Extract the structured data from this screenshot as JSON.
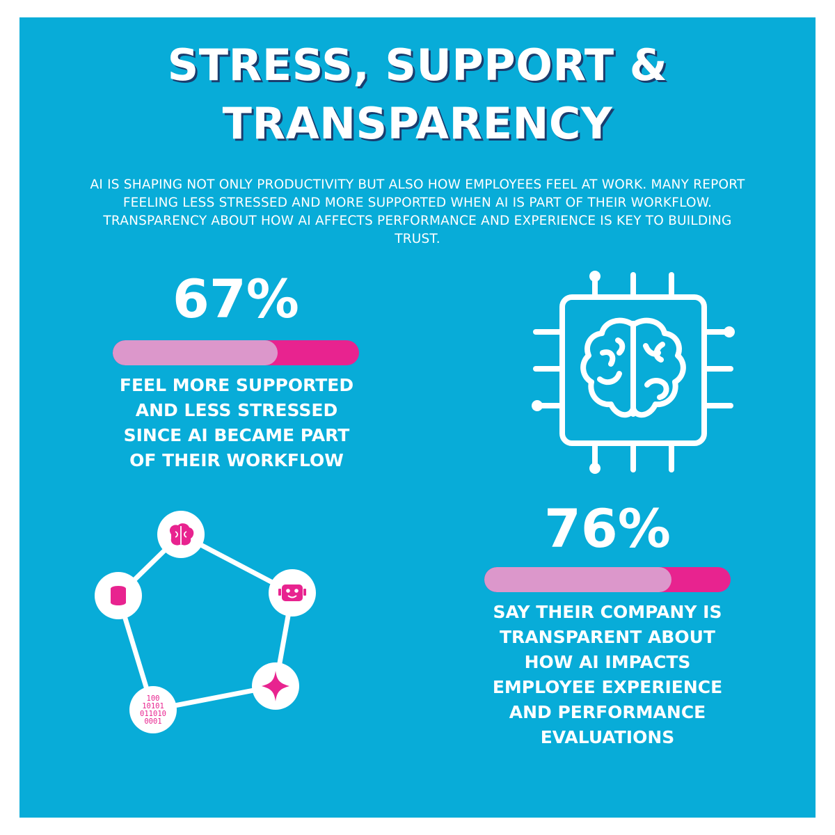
{
  "title": {
    "line1": "STRESS, SUPPORT &",
    "line2": "TRANSPARENCY"
  },
  "intro": "AI IS SHAPING NOT ONLY PRODUCTIVITY BUT ALSO HOW EMPLOYEES FEEL AT WORK. MANY REPORT FEELING LESS STRESSED AND MORE SUPPORTED WHEN AI IS PART OF THEIR WORKFLOW. TRANSPARENCY ABOUT HOW AI AFFECTS PERFORMANCE AND EXPERIENCE IS KEY TO BUILDING TRUST.",
  "stats": [
    {
      "value_text": "67%",
      "fill_fraction": 0.67,
      "label_lines": [
        "FEEL MORE SUPPORTED",
        "AND LESS STRESSED",
        "SINCE AI BECAME PART",
        "OF THEIR WORKFLOW"
      ]
    },
    {
      "value_text": "76%",
      "fill_fraction": 0.76,
      "label_lines": [
        "SAY THEIR COMPANY IS",
        "TRANSPARENT ABOUT",
        "HOW AI IMPACTS",
        "EMPLOYEE EXPERIENCE",
        "AND PERFORMANCE",
        "EVALUATIONS"
      ]
    }
  ],
  "network": {
    "binary_lines": [
      "100",
      "10101",
      "011010",
      "0001"
    ]
  },
  "colors": {
    "background": "#08acd8",
    "accent_pink": "#e8238f",
    "light_pink": "#dc97cb",
    "white": "#ffffff"
  },
  "icons": [
    "brain-chip-icon",
    "brain-node-icon",
    "robot-node-icon",
    "sparkle-node-icon",
    "binary-node-icon",
    "database-node-icon"
  ]
}
